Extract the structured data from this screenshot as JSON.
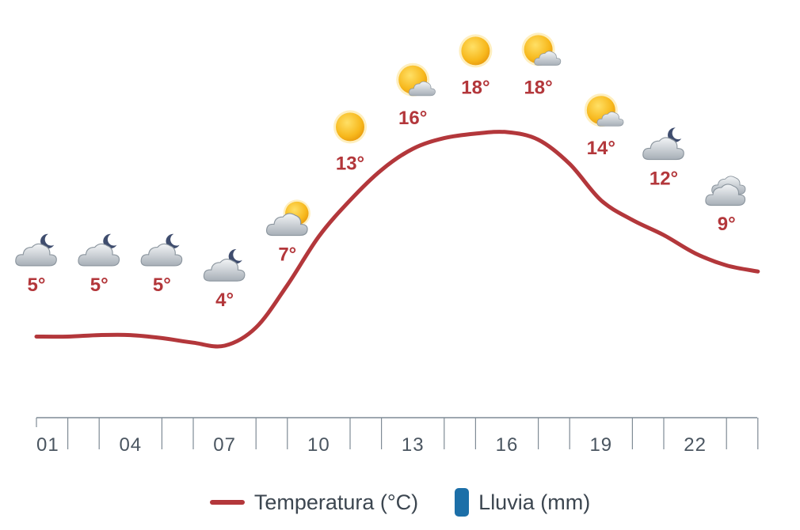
{
  "chart_data": {
    "type": "line",
    "xlabel": "",
    "ylabel": "",
    "ticks": [
      "01",
      "04",
      "07",
      "10",
      "13",
      "16",
      "19",
      "22"
    ],
    "points": [
      {
        "hour": 1,
        "temp": 5,
        "label": "5°",
        "icon": "cloud-moon-icon"
      },
      {
        "hour": 3,
        "temp": 5,
        "label": "5°",
        "icon": "cloud-moon-icon"
      },
      {
        "hour": 5,
        "temp": 5,
        "label": "5°",
        "icon": "cloud-moon-icon"
      },
      {
        "hour": 7,
        "temp": 4,
        "label": "4°",
        "icon": "cloud-moon-icon"
      },
      {
        "hour": 9,
        "temp": 7,
        "label": "7°",
        "icon": "cloud-sun-icon"
      },
      {
        "hour": 11,
        "temp": 13,
        "label": "13°",
        "icon": "sun-icon"
      },
      {
        "hour": 13,
        "temp": 16,
        "label": "16°",
        "icon": "sun-cloud-icon"
      },
      {
        "hour": 15,
        "temp": 18,
        "label": "18°",
        "icon": "sun-icon"
      },
      {
        "hour": 17,
        "temp": 18,
        "label": "18°",
        "icon": "sun-cloud-icon"
      },
      {
        "hour": 19,
        "temp": 14,
        "label": "14°",
        "icon": "sun-cloud-icon"
      },
      {
        "hour": 21,
        "temp": 12,
        "label": "12°",
        "icon": "cloud-moon-icon"
      },
      {
        "hour": 23,
        "temp": 9,
        "label": "9°",
        "icon": "cloudy-icon"
      }
    ],
    "curve": [
      {
        "hour": 1,
        "temp": 4.6
      },
      {
        "hour": 2,
        "temp": 4.6
      },
      {
        "hour": 3,
        "temp": 4.7
      },
      {
        "hour": 4,
        "temp": 4.7
      },
      {
        "hour": 5,
        "temp": 4.5
      },
      {
        "hour": 6,
        "temp": 4.2
      },
      {
        "hour": 7,
        "temp": 4.0
      },
      {
        "hour": 8,
        "temp": 5.2
      },
      {
        "hour": 9,
        "temp": 8.0
      },
      {
        "hour": 10,
        "temp": 11.2
      },
      {
        "hour": 11,
        "temp": 13.6
      },
      {
        "hour": 12,
        "temp": 15.6
      },
      {
        "hour": 13,
        "temp": 17.0
      },
      {
        "hour": 14,
        "temp": 17.7
      },
      {
        "hour": 15,
        "temp": 18.0
      },
      {
        "hour": 16,
        "temp": 18.1
      },
      {
        "hour": 17,
        "temp": 17.6
      },
      {
        "hour": 18,
        "temp": 16.0
      },
      {
        "hour": 19,
        "temp": 13.6
      },
      {
        "hour": 20,
        "temp": 12.3
      },
      {
        "hour": 21,
        "temp": 11.3
      },
      {
        "hour": 22,
        "temp": 10.1
      },
      {
        "hour": 23,
        "temp": 9.3
      },
      {
        "hour": 24,
        "temp": 8.9
      }
    ],
    "legend": {
      "placement": "bottom",
      "temperature": "Temperatura (°C)",
      "rain": "Lluvia (mm)"
    },
    "colors": {
      "temperature": "#b3373b",
      "rain": "#1c6fa8",
      "axis": "#7f8b95",
      "tick_text": "#4a5560"
    },
    "grid": false
  }
}
